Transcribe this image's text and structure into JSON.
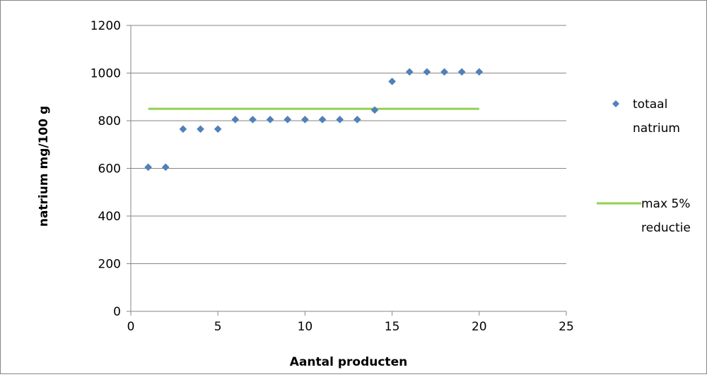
{
  "chart_data": {
    "type": "scatter",
    "xlabel": "Aantal producten",
    "ylabel": "natrium mg/100 g",
    "xlim": [
      0,
      25
    ],
    "ylim": [
      0,
      1200
    ],
    "xticks": [
      0,
      5,
      10,
      15,
      20,
      25
    ],
    "yticks": [
      0,
      200,
      400,
      600,
      800,
      1000,
      1200
    ],
    "grid": "horizontal",
    "legend_position": "right",
    "series": [
      {
        "name": "totaal natrium",
        "legend_lines": [
          "totaal",
          "natrium"
        ],
        "kind": "scatter",
        "marker": "diamond",
        "color": "#4f81bd",
        "x": [
          1,
          2,
          3,
          4,
          5,
          6,
          7,
          8,
          9,
          10,
          11,
          12,
          13,
          14,
          15,
          16,
          17,
          18,
          19,
          20
        ],
        "y": [
          605,
          605,
          765,
          765,
          765,
          805,
          805,
          805,
          805,
          805,
          805,
          805,
          805,
          845,
          965,
          1005,
          1005,
          1005,
          1005,
          1005
        ]
      },
      {
        "name": "max 5% reductie",
        "legend_lines": [
          "max 5%",
          "reductie"
        ],
        "kind": "line",
        "color": "#92d050",
        "x": [
          1,
          20
        ],
        "y": [
          850,
          850
        ]
      }
    ]
  }
}
